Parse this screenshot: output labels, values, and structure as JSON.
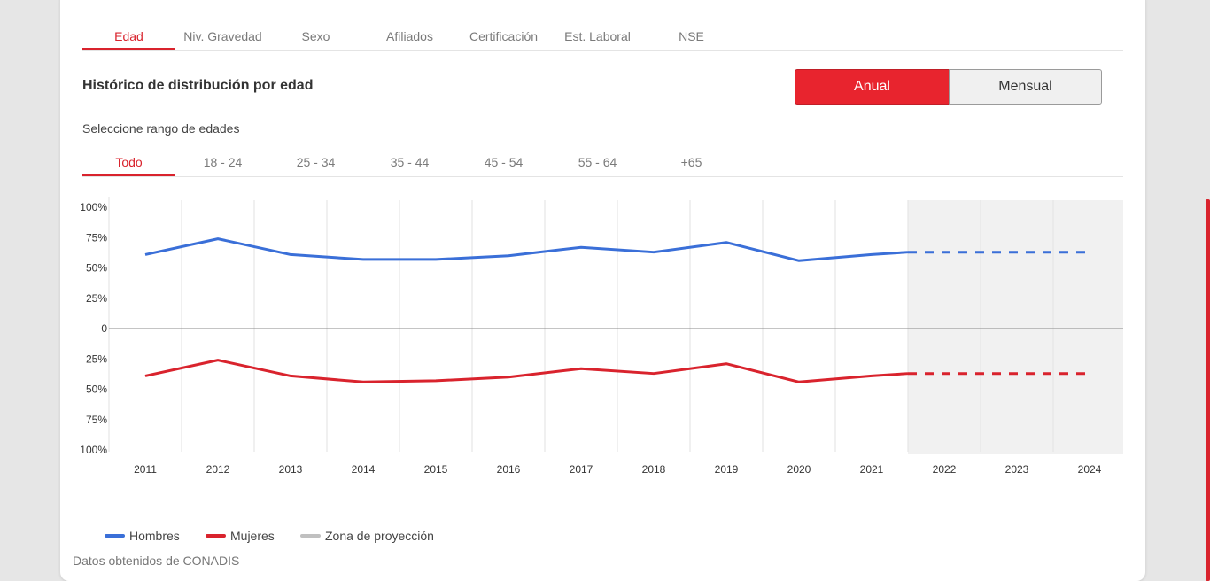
{
  "tabs": [
    {
      "label": "Edad",
      "active": true
    },
    {
      "label": "Niv. Gravedad",
      "active": false
    },
    {
      "label": "Sexo",
      "active": false
    },
    {
      "label": "Afiliados",
      "active": false
    },
    {
      "label": "Certificación",
      "active": false
    },
    {
      "label": "Est. Laboral",
      "active": false
    },
    {
      "label": "NSE",
      "active": false
    }
  ],
  "section_title": "Histórico de distribución por edad",
  "period_toggle": {
    "annual": "Anual",
    "monthly": "Mensual",
    "selected": "Anual"
  },
  "range_label": "Seleccione rango de edades",
  "age_tabs": [
    {
      "label": "Todo",
      "active": true
    },
    {
      "label": "18 - 24",
      "active": false
    },
    {
      "label": "25 - 34",
      "active": false
    },
    {
      "label": "35 - 44",
      "active": false
    },
    {
      "label": "45 - 54",
      "active": false
    },
    {
      "label": "55 - 64",
      "active": false
    },
    {
      "label": "+65",
      "active": false
    }
  ],
  "legend": [
    {
      "label": "Hombres",
      "color": "#3a6fd8"
    },
    {
      "label": "Mujeres",
      "color": "#d9232d"
    },
    {
      "label": "Zona de proyección",
      "color": "#c0c0c0"
    }
  ],
  "source": "Datos obtenidos de CONADIS",
  "chart_data": {
    "type": "line",
    "x": [
      2011,
      2012,
      2013,
      2014,
      2015,
      2016,
      2017,
      2018,
      2019,
      2020,
      2021,
      2022,
      2023,
      2024
    ],
    "x_tick_labels": [
      "2011",
      "2012",
      "2013",
      "2014",
      "2015",
      "2016",
      "2017",
      "2018",
      "2019",
      "2020",
      "2021",
      "2022",
      "2023",
      "2024"
    ],
    "y_tick_labels": [
      "100%",
      "75%",
      "50%",
      "25%",
      "0",
      "25%",
      "50%",
      "75%",
      "100%"
    ],
    "y_tick_values": [
      100,
      75,
      50,
      25,
      0,
      -25,
      -50,
      -75,
      -100
    ],
    "ylim": [
      -100,
      100
    ],
    "series": [
      {
        "name": "Hombres",
        "color": "#3a6fd8",
        "x": [
          2011,
          2012,
          2013,
          2014,
          2015,
          2016,
          2017,
          2018,
          2019,
          2020,
          2021,
          2021.5
        ],
        "values": [
          61,
          74,
          61,
          57,
          57,
          60,
          67,
          63,
          71,
          56,
          61,
          63
        ]
      },
      {
        "name": "Mujeres",
        "color": "#d9232d",
        "x": [
          2011,
          2012,
          2013,
          2014,
          2015,
          2016,
          2017,
          2018,
          2019,
          2020,
          2021,
          2021.5
        ],
        "values": [
          -39,
          -26,
          -39,
          -44,
          -43,
          -40,
          -33,
          -37,
          -29,
          -44,
          -39,
          -37
        ]
      }
    ],
    "projection": {
      "label": "Zona de proyección",
      "x_start": 2021.5,
      "x_end": 2024,
      "Hombres": 63,
      "Mujeres": -37
    },
    "grid": true,
    "legend_position": "bottom-left"
  }
}
